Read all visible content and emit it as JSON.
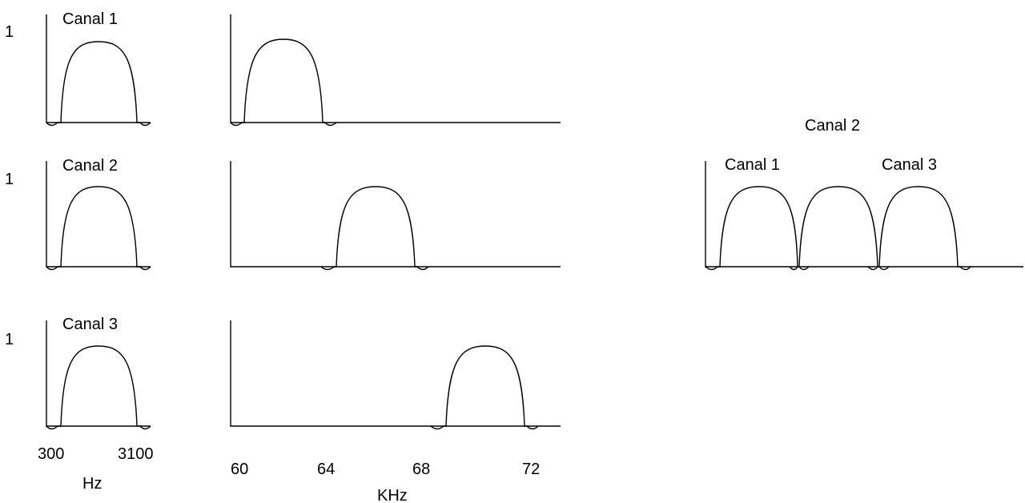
{
  "baseband": {
    "y_value_label": "1",
    "freq_min_label": "300",
    "freq_max_label": "3100",
    "unit": "Hz",
    "channels": [
      "Canal 1",
      "Canal 2",
      "Canal 3"
    ]
  },
  "translated": {
    "tick_labels": [
      "60",
      "64",
      "68",
      "72"
    ],
    "unit": "KHz",
    "channel_bands_khz": [
      [
        60,
        64
      ],
      [
        64,
        68
      ],
      [
        68,
        72
      ]
    ]
  },
  "combined": {
    "channels": [
      "Canal 1",
      "Canal 2",
      "Canal 3"
    ]
  },
  "colors": {
    "line": "#000000",
    "background": "#ffffff"
  }
}
